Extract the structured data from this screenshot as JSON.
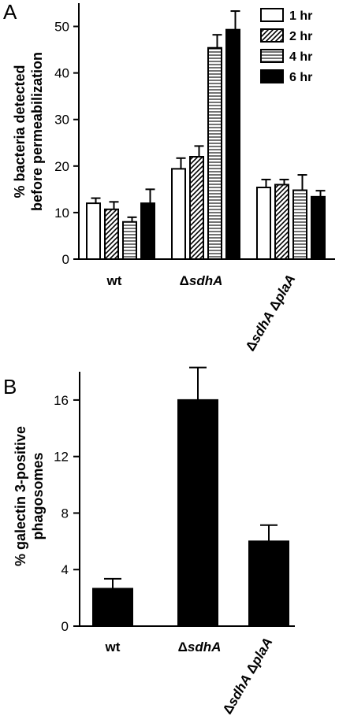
{
  "chart_data": [
    {
      "panel": "A",
      "type": "bar",
      "ylabel": [
        "% bacteria detected",
        "before permeabilization"
      ],
      "categories": [
        [
          {
            "t": "wt"
          }
        ],
        [
          {
            "t": "Δ"
          },
          {
            "t": "sdhA",
            "i": true
          }
        ],
        [
          {
            "t": "Δ"
          },
          {
            "t": "sdhA",
            "i": true
          },
          {
            "t": " Δ"
          },
          {
            "t": "plaA",
            "i": true
          }
        ]
      ],
      "ylim": [
        0,
        55
      ],
      "yticks": [
        0,
        10,
        20,
        30,
        40,
        50
      ],
      "legend_position": "top-right",
      "series": [
        {
          "name": "1 hr",
          "pattern": "open",
          "values": [
            12,
            19.4,
            15.4
          ],
          "errors": [
            1.1,
            2.3,
            1.7
          ]
        },
        {
          "name": "2 hr",
          "pattern": "diagonal",
          "values": [
            10.7,
            22,
            16
          ],
          "errors": [
            1.6,
            2.3,
            1.1
          ]
        },
        {
          "name": "4 hr",
          "pattern": "horizontal",
          "values": [
            8,
            45.4,
            14.8
          ],
          "errors": [
            1,
            2.8,
            3.3
          ]
        },
        {
          "name": "6 hr",
          "pattern": "solid",
          "values": [
            12,
            49.3,
            13.4
          ],
          "errors": [
            3,
            4,
            1.3
          ]
        }
      ]
    },
    {
      "panel": "B",
      "type": "bar",
      "ylabel": [
        "% galectin 3-positive",
        "phagosomes"
      ],
      "categories": [
        [
          {
            "t": "wt"
          }
        ],
        [
          {
            "t": "Δ"
          },
          {
            "t": "sdhA",
            "i": true
          }
        ],
        [
          {
            "t": "Δ"
          },
          {
            "t": "sdhA",
            "i": true
          },
          {
            "t": " Δ"
          },
          {
            "t": "plaA",
            "i": true
          }
        ]
      ],
      "ylim": [
        0,
        18
      ],
      "yticks": [
        0,
        4,
        8,
        12,
        16
      ],
      "series": [
        {
          "pattern": "solid",
          "values": [
            2.65,
            16,
            6
          ],
          "errors": [
            0.7,
            2.3,
            1.15
          ]
        }
      ]
    }
  ]
}
